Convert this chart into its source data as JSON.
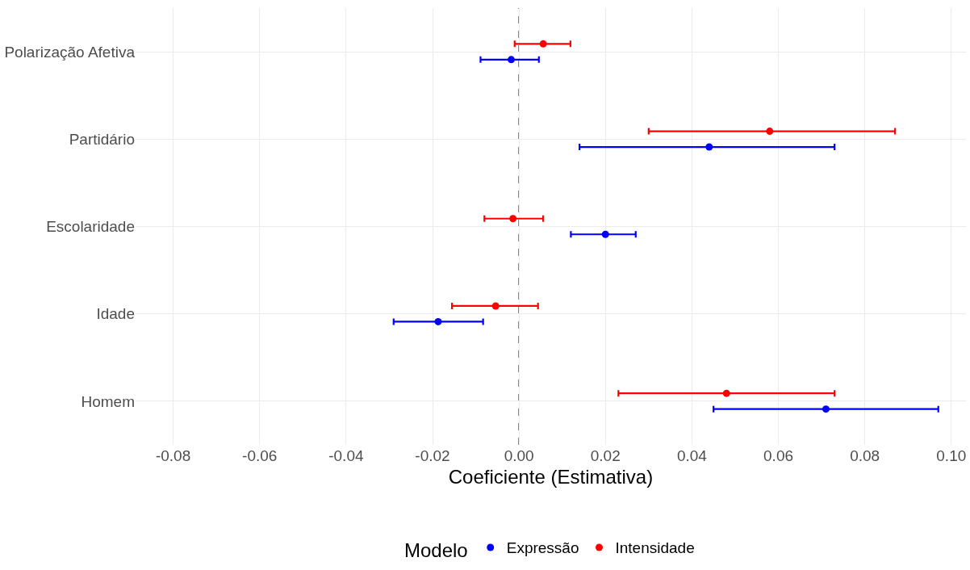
{
  "chart_data": {
    "type": "scatter",
    "orientation": "horizontal",
    "xlabel": "Coeficiente (Estimativa)",
    "legend_title": "Modelo",
    "categories": [
      "Polarização Afetiva",
      "Partidário",
      "Escolaridade",
      "Idade",
      "Homem"
    ],
    "series": [
      {
        "name": "Expressão",
        "color": "#0000ff",
        "values": [
          -0.0018,
          0.044,
          0.02,
          -0.0187,
          0.071
        ],
        "errors": [
          [
            -0.0089,
            0.0046
          ],
          [
            0.014,
            0.073
          ],
          [
            0.012,
            0.027
          ],
          [
            -0.029,
            -0.0083
          ],
          [
            0.045,
            0.097
          ]
        ]
      },
      {
        "name": "Intensidade",
        "color": "#ff0000",
        "values": [
          0.0056,
          0.058,
          -0.0014,
          -0.0054,
          0.048
        ],
        "errors": [
          [
            -0.001,
            0.0119
          ],
          [
            0.03,
            0.087
          ],
          [
            -0.008,
            0.0056
          ],
          [
            -0.0155,
            0.0044
          ],
          [
            0.023,
            0.073
          ]
        ]
      }
    ],
    "xlim": [
      -0.0887,
      0.1034
    ],
    "xticks": [
      {
        "value": -0.08,
        "label": "-0.08"
      },
      {
        "value": -0.06,
        "label": "-0.06"
      },
      {
        "value": -0.04,
        "label": "-0.04"
      },
      {
        "value": -0.02,
        "label": "-0.02"
      },
      {
        "value": 0,
        "label": "0.00"
      },
      {
        "value": 0.02,
        "label": "0.02"
      },
      {
        "value": 0.04,
        "label": "0.04"
      },
      {
        "value": 0.06,
        "label": "0.06"
      },
      {
        "value": 0.08,
        "label": "0.08"
      },
      {
        "value": 0.1,
        "label": "0.10"
      }
    ],
    "ref_lines": [
      {
        "axis": "x",
        "value": 0,
        "color": "#000000",
        "line_style": "dashed"
      }
    ],
    "grid": true,
    "legend": "bottom",
    "marker": "circle"
  }
}
